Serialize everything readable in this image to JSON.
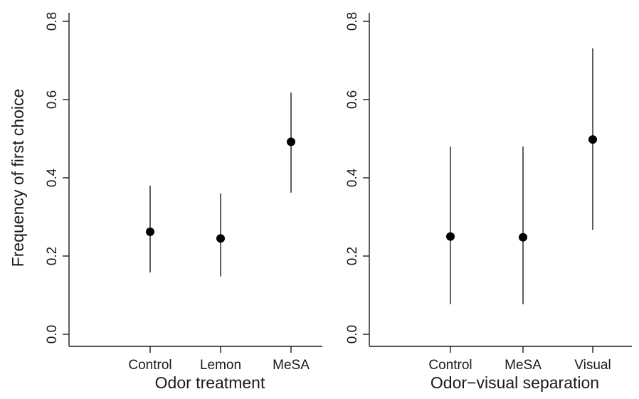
{
  "chart_data": [
    {
      "type": "scatter",
      "panel": "left",
      "xlabel": "Odor treatment",
      "ylabel": "Frequency of first choice",
      "categories": [
        "Control",
        "Lemon",
        "MeSA"
      ],
      "values": [
        0.262,
        0.245,
        0.492
      ],
      "lower": [
        0.158,
        0.148,
        0.362
      ],
      "upper": [
        0.38,
        0.36,
        0.618
      ],
      "ylim": [
        0.0,
        0.8
      ],
      "yticks": [
        0.0,
        0.2,
        0.4,
        0.6,
        0.8
      ],
      "ytick_labels": [
        "0.0",
        "0.2",
        "0.4",
        "0.6",
        "0.8"
      ],
      "grid": false,
      "error_bars": true
    },
    {
      "type": "scatter",
      "panel": "right",
      "xlabel": "Odor−visual separation",
      "ylabel": "",
      "categories": [
        "Control",
        "MeSA",
        "Visual"
      ],
      "values": [
        0.25,
        0.248,
        0.498
      ],
      "lower": [
        0.077,
        0.077,
        0.267
      ],
      "upper": [
        0.48,
        0.48,
        0.731
      ],
      "ylim": [
        0.0,
        0.8
      ],
      "yticks": [
        0.0,
        0.2,
        0.4,
        0.6,
        0.8
      ],
      "ytick_labels": [
        "0.0",
        "0.2",
        "0.4",
        "0.6",
        "0.8"
      ],
      "grid": false,
      "error_bars": true
    }
  ]
}
